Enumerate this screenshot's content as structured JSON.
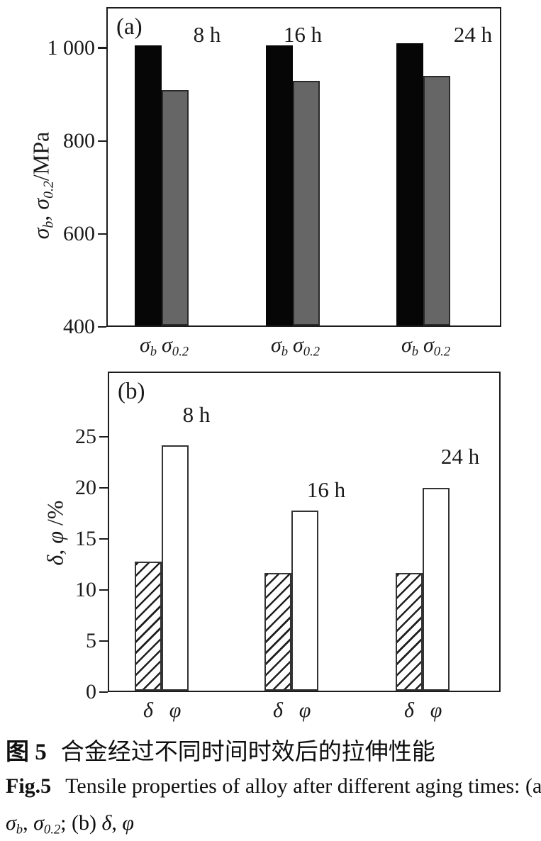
{
  "figure": {
    "caption_zh": {
      "bold": "图 5",
      "text": "合金经过不同时间时效后的拉伸性能"
    },
    "caption_en": {
      "bold": "Fig.5",
      "text": "Tensile properties of alloy after different aging times: (a)"
    },
    "caption_en_line2_parts": [
      {
        "t": "σ",
        "sub": "b",
        "i": true
      },
      {
        "t": ", "
      },
      {
        "t": "σ",
        "sub": "0.2",
        "i": true
      },
      {
        "t": "; (b) "
      },
      {
        "t": "δ",
        "i": true
      },
      {
        "t": ", "
      },
      {
        "t": "φ",
        "i": true
      }
    ]
  },
  "chart_data": [
    {
      "id": "a",
      "type": "bar",
      "panel_label": "(a)",
      "title": "",
      "xlabel": "",
      "ylabel": "σb, σ0.2/MPa",
      "ylabel_parts": [
        {
          "t": "σ",
          "sub": "b",
          "i": true
        },
        {
          "t": ", "
        },
        {
          "t": "σ",
          "sub": "0.2",
          "i": true
        },
        {
          "t": "/MPa"
        }
      ],
      "categories": [
        "8 h",
        "16 h",
        "24 h"
      ],
      "series": [
        {
          "name": "σb",
          "label_parts": [
            {
              "t": "σ",
              "sub": "b",
              "i": true
            }
          ],
          "values": [
            1005,
            1005,
            1010
          ],
          "style": "solid-black",
          "color": "#060606"
        },
        {
          "name": "σ0.2",
          "label_parts": [
            {
              "t": "σ",
              "sub": "0.2",
              "i": true
            }
          ],
          "values": [
            910,
            930,
            940
          ],
          "style": "solid-gray",
          "color": "#666666"
        }
      ],
      "ylim": [
        400,
        1088
      ],
      "yticks": [
        400,
        600,
        800,
        1000
      ],
      "ytick_labels": [
        "400",
        "600",
        "800",
        "1 000"
      ],
      "grid": false,
      "legend_position": "none"
    },
    {
      "id": "b",
      "type": "bar",
      "panel_label": "(b)",
      "title": "",
      "xlabel": "",
      "ylabel": "δ, φ /%",
      "ylabel_parts": [
        {
          "t": "δ",
          "i": true
        },
        {
          "t": ", "
        },
        {
          "t": "φ",
          "i": true
        },
        {
          "t": " /%"
        }
      ],
      "categories": [
        "8 h",
        "16 h",
        "24 h"
      ],
      "series": [
        {
          "name": "δ",
          "label_parts": [
            {
              "t": "δ",
              "i": true
            }
          ],
          "values": [
            12.8,
            11.7,
            11.7
          ],
          "style": "hatch",
          "color": "#ffffff"
        },
        {
          "name": "φ",
          "label_parts": [
            {
              "t": "φ",
              "i": true
            }
          ],
          "values": [
            24.2,
            17.8,
            20.0
          ],
          "style": "open",
          "color": "#ffffff"
        }
      ],
      "ylim": [
        0,
        31.4
      ],
      "yticks": [
        0,
        5,
        10,
        15,
        20,
        25
      ],
      "ytick_labels": [
        "0",
        "5",
        "10",
        "15",
        "20",
        "25"
      ],
      "grid": false,
      "legend_position": "none"
    }
  ]
}
